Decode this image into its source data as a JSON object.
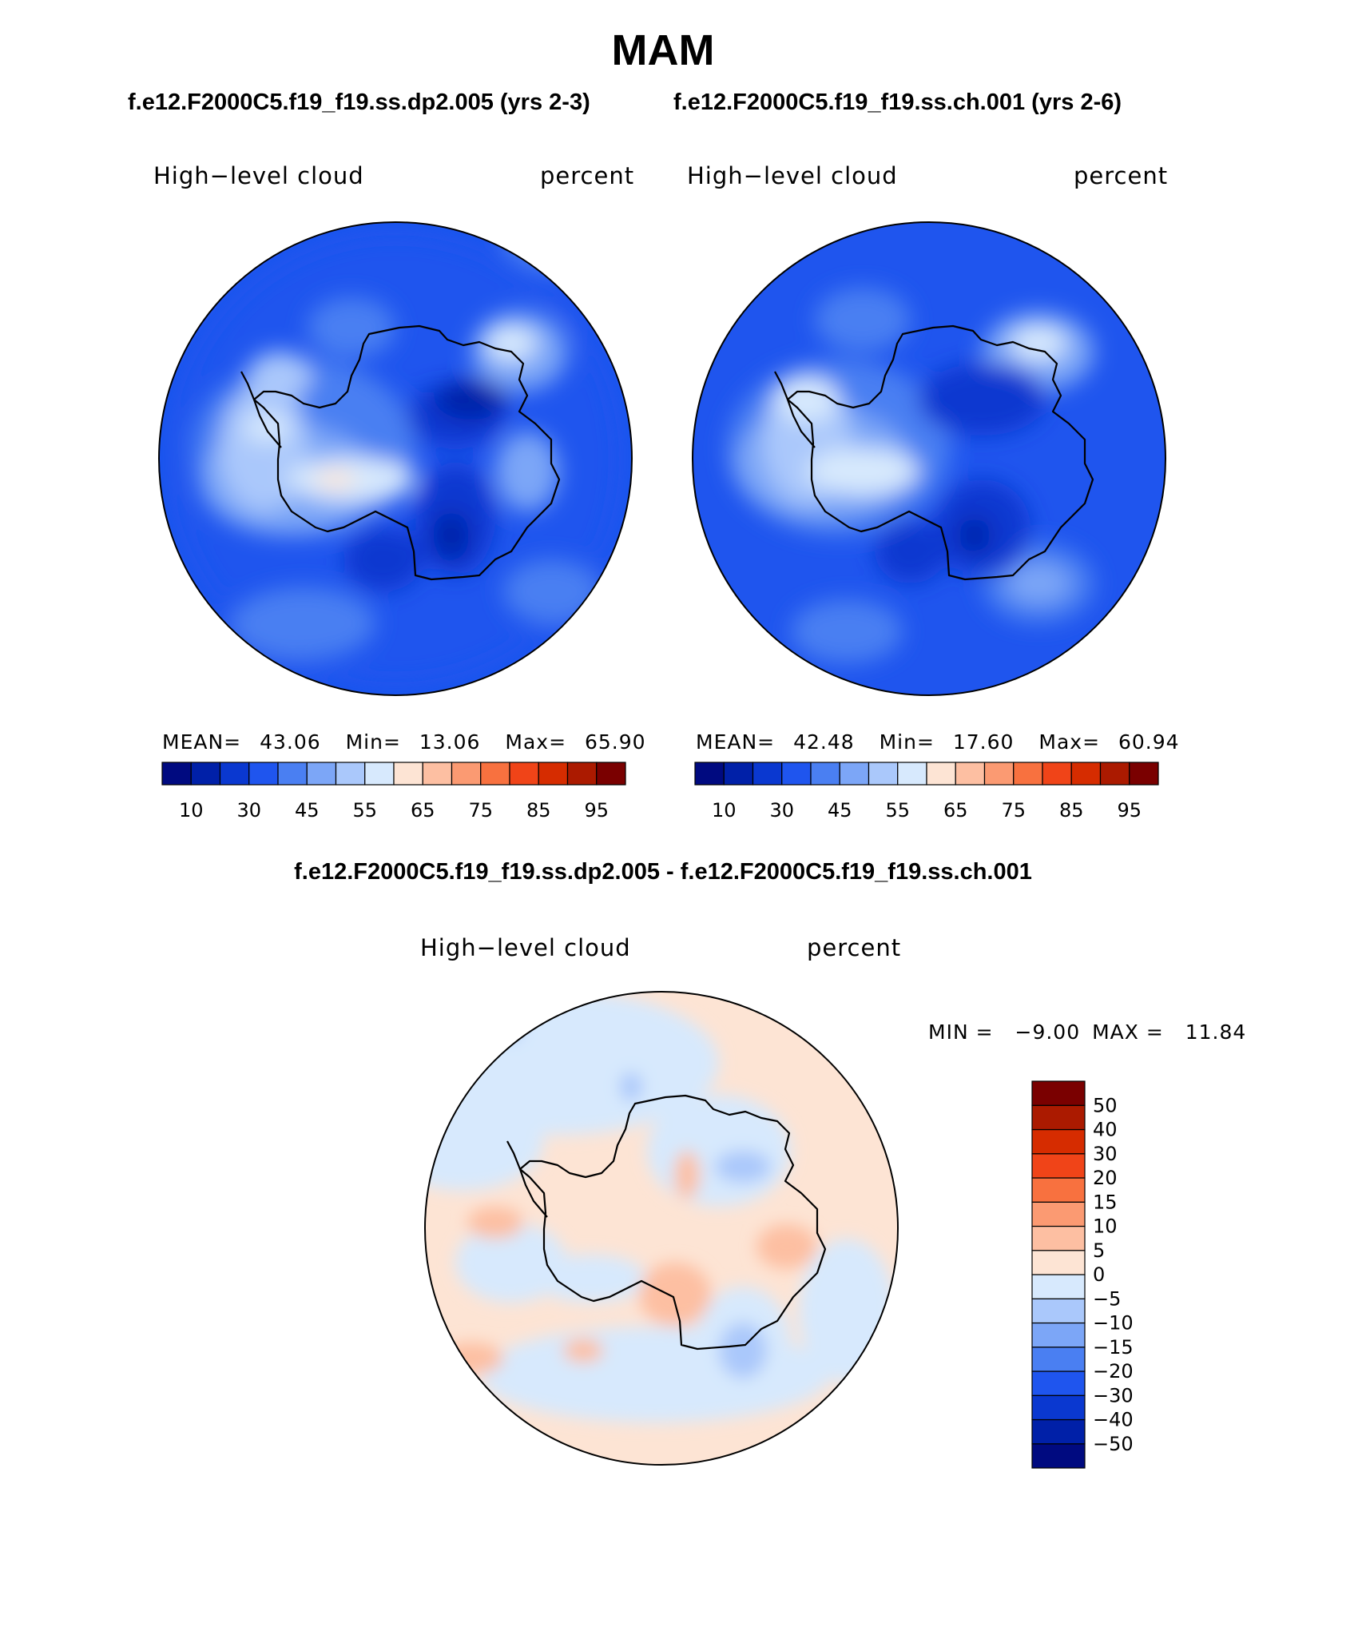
{
  "page": {
    "season": "MAM",
    "case1_title": "f.e12.F2000C5.f19_f19.ss.dp2.005 (yrs 2-3)",
    "case2_title": "f.e12.F2000C5.f19_f19.ss.ch.001 (yrs 2-6)",
    "diff_title": "f.e12.F2000C5.f19_f19.ss.dp2.005 - f.e12.F2000C5.f19_f19.ss.ch.001"
  },
  "panel1": {
    "variable": "High−level cloud",
    "units": "percent",
    "stats": {
      "mean_label": "MEAN=",
      "mean": "43.06",
      "min_label": "Min=",
      "min": "13.06",
      "max_label": "Max=",
      "max": "65.90"
    }
  },
  "panel2": {
    "variable": "High−level cloud",
    "units": "percent",
    "stats": {
      "mean_label": "MEAN=",
      "mean": "42.48",
      "min_label": "Min=",
      "min": "17.60",
      "max_label": "Max=",
      "max": "60.94"
    }
  },
  "panel3": {
    "variable": "High−level cloud",
    "units": "percent",
    "stats": {
      "min_label": "MIN =",
      "min": "−9.00",
      "max_label": "MAX =",
      "max": "11.84"
    }
  },
  "field_colorbar": {
    "colors": [
      "#000a80",
      "#0020a8",
      "#0a38d0",
      "#1f55ee",
      "#4a7ff2",
      "#7ca6f7",
      "#aac8fb",
      "#d7e9fd",
      "#fde4d4",
      "#fdbfa2",
      "#fb9a72",
      "#f8713f",
      "#f04418",
      "#d62c00",
      "#ab1a00",
      "#7a0000"
    ],
    "labels": [
      "10",
      "30",
      "45",
      "55",
      "65",
      "75",
      "85",
      "95"
    ]
  },
  "diff_colorbar": {
    "colors_bottom_to_top": [
      "#000a80",
      "#0020a8",
      "#0a38d0",
      "#1f55ee",
      "#4a7ff2",
      "#7ca6f7",
      "#aac8fb",
      "#d7e9fd",
      "#fde4d4",
      "#fdbfa2",
      "#fb9a72",
      "#f8713f",
      "#f04418",
      "#d62c00",
      "#ab1a00",
      "#7a0000"
    ],
    "labels_top_to_bottom": [
      "50",
      "40",
      "30",
      "20",
      "15",
      "10",
      "5",
      "0",
      "−5",
      "−10",
      "−15",
      "−20",
      "−30",
      "−40",
      "−50"
    ]
  }
}
